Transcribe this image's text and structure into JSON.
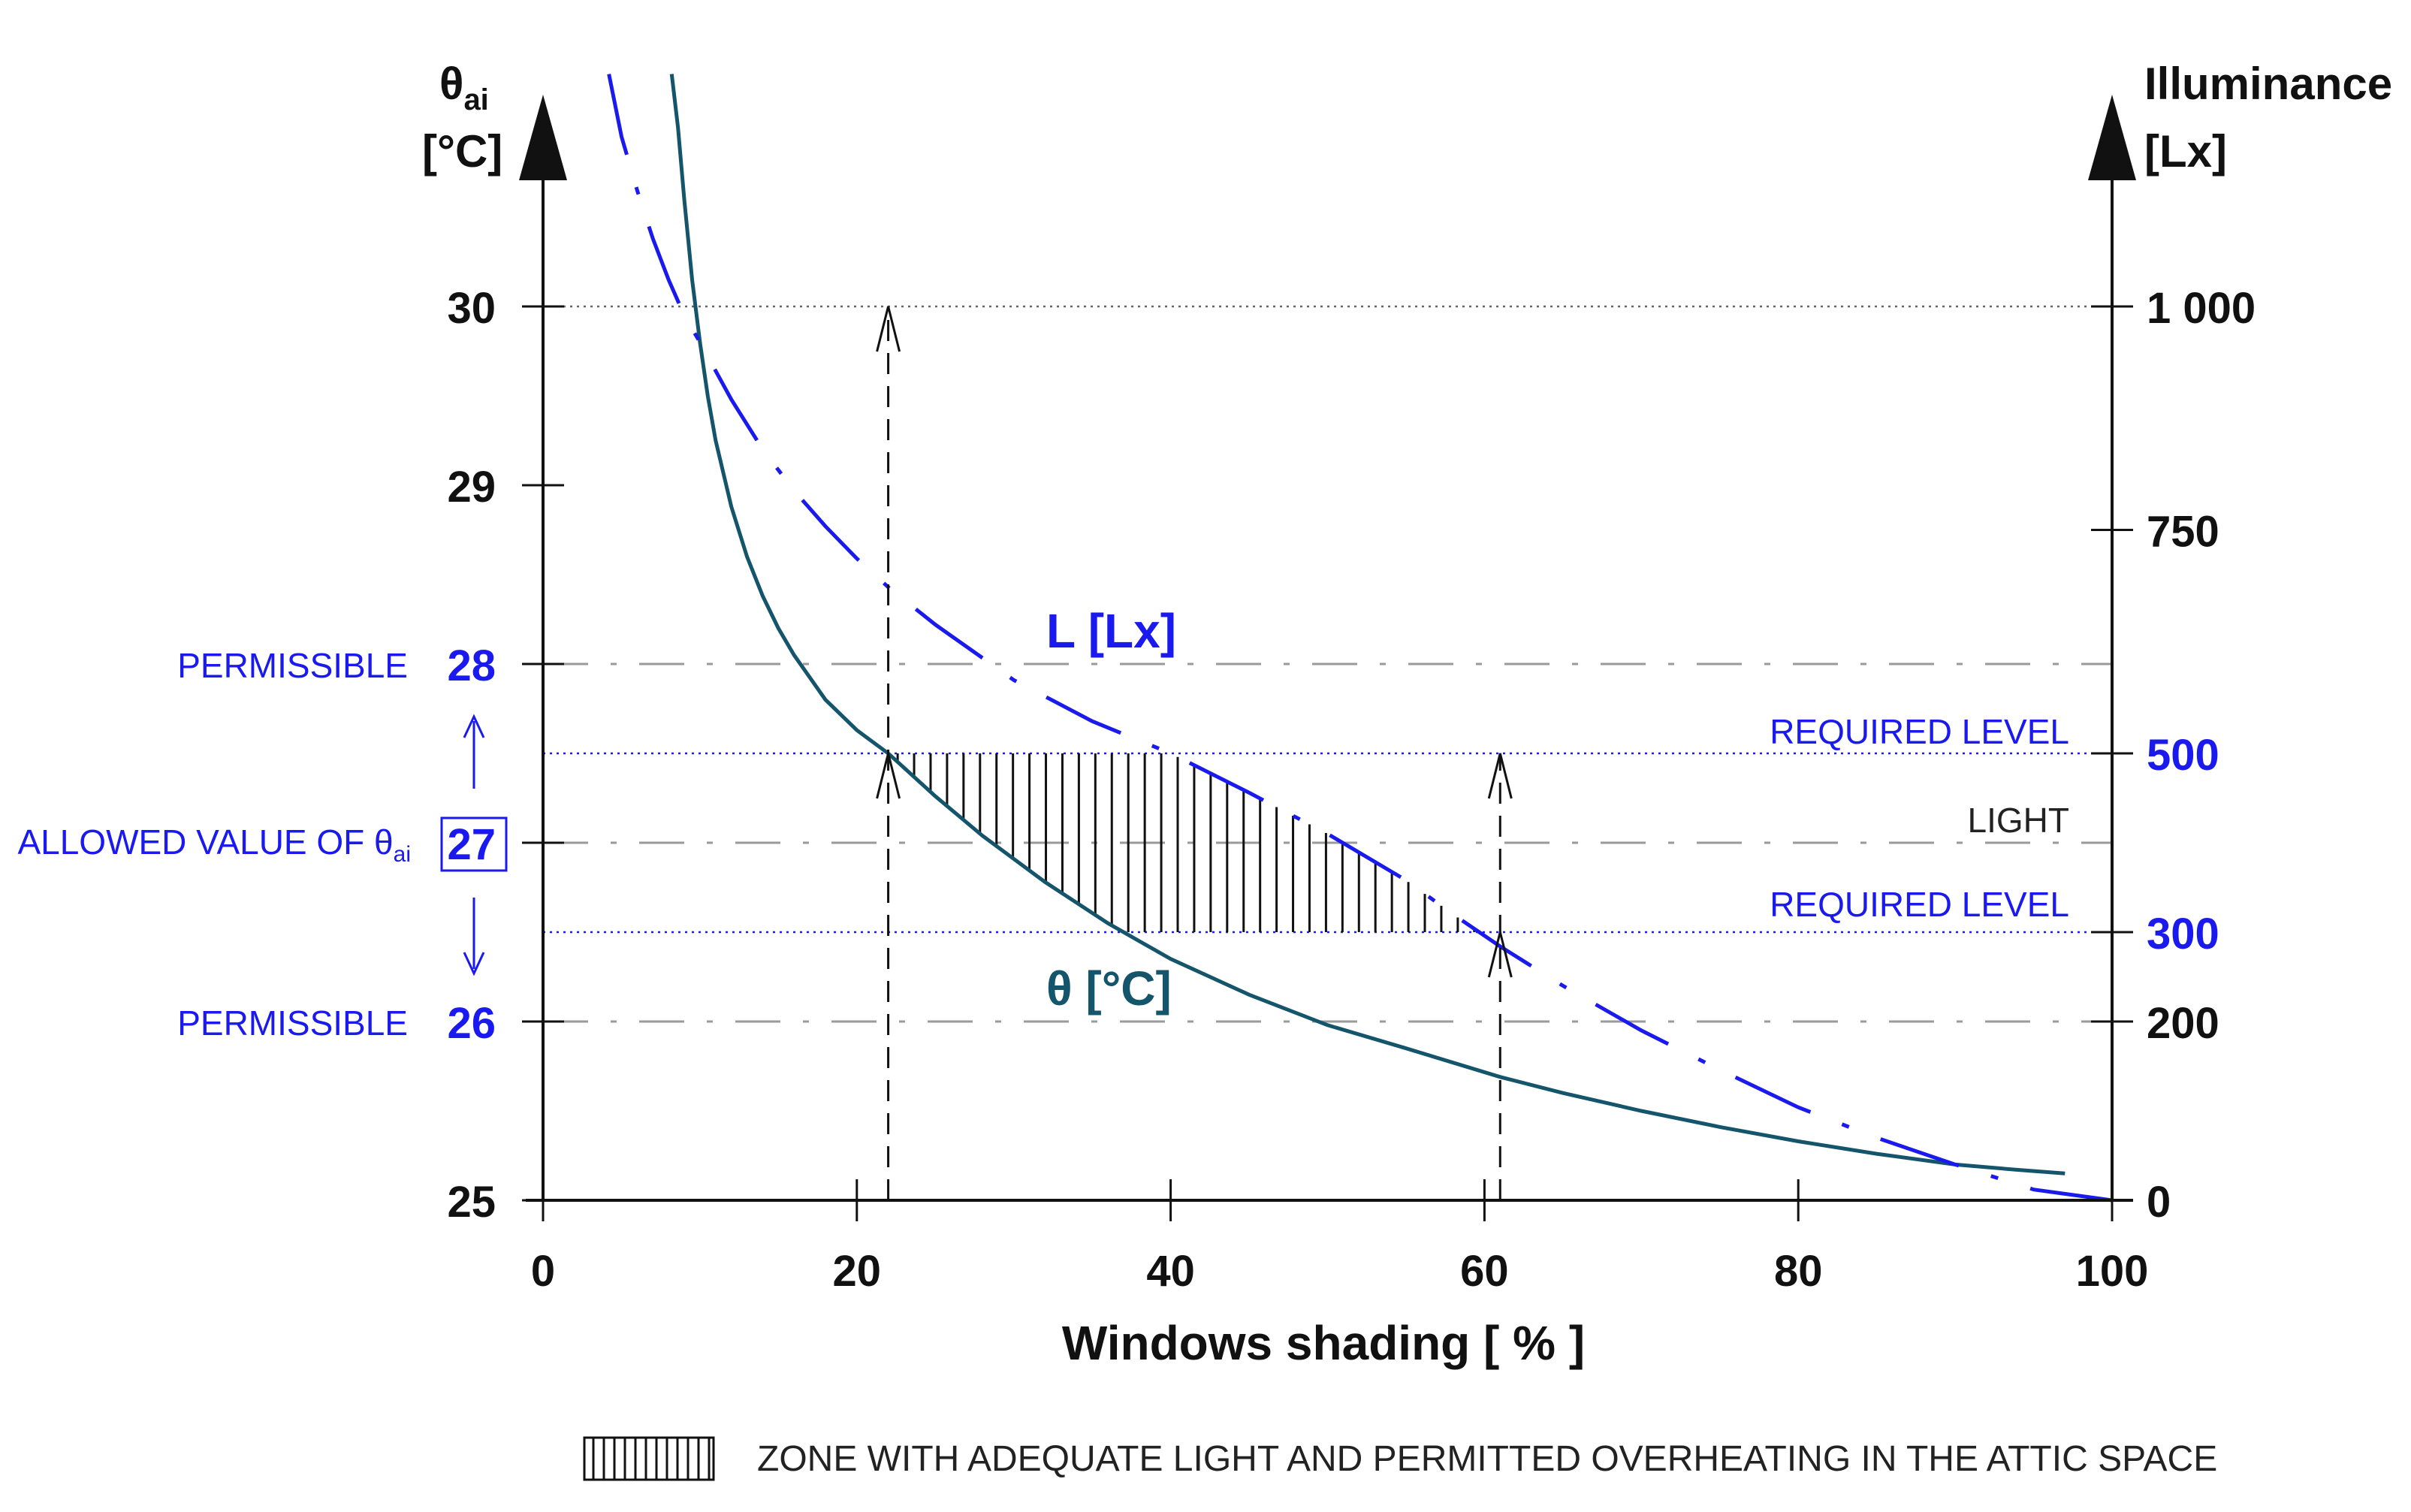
{
  "chart_data": {
    "type": "line",
    "xlabel": "Windows shading [ % ]",
    "x_ticks": [
      "0",
      "20",
      "40",
      "60",
      "80",
      "100"
    ],
    "xlim": [
      0,
      100
    ],
    "left_axis": {
      "symbol": "θ",
      "subscript": "ai",
      "unit": "[°C]",
      "ylim": [
        25,
        31.3
      ],
      "ticks": [
        {
          "v": 25,
          "label": "25",
          "highlight": false
        },
        {
          "v": 26,
          "label": "26",
          "highlight": true
        },
        {
          "v": 27,
          "label": "27",
          "highlight": true,
          "boxed": true
        },
        {
          "v": 28,
          "label": "28",
          "highlight": true
        },
        {
          "v": 29,
          "label": "29",
          "highlight": false
        },
        {
          "v": 30,
          "label": "30",
          "highlight": false
        }
      ]
    },
    "right_axis": {
      "title_line1": "Illuminance",
      "title_line2": "[Lx]",
      "ticks": [
        {
          "lx": 0,
          "label": "0",
          "theta_equiv": 25.0,
          "highlight": false
        },
        {
          "lx": 200,
          "label": "200",
          "theta_equiv": 26.0,
          "highlight": false
        },
        {
          "lx": 300,
          "label": "300",
          "theta_equiv": 26.5,
          "highlight": true
        },
        {
          "lx": 500,
          "label": "500",
          "theta_equiv": 27.5,
          "highlight": true
        },
        {
          "lx": 750,
          "label": "750",
          "theta_equiv": 28.75,
          "highlight": false
        },
        {
          "lx": 1000,
          "label": "1 000",
          "theta_equiv": 30.0,
          "highlight": false
        }
      ]
    },
    "series": [
      {
        "name": "θ [°C]",
        "color": "#14556b",
        "style": "solid",
        "x": [
          8.2,
          8.6,
          9.0,
          9.5,
          10.0,
          10.5,
          11.0,
          12.0,
          13.0,
          14.0,
          15.0,
          16.0,
          18.0,
          20.0,
          22.0,
          25.0,
          28.0,
          32.0,
          36.0,
          40.0,
          45.0,
          50.0,
          55.0,
          61.0,
          65.0,
          70.0,
          75.0,
          80.0,
          85.0,
          90.0,
          94.0,
          97.0
        ],
        "y": [
          31.3,
          31.0,
          30.6,
          30.15,
          29.8,
          29.5,
          29.25,
          28.88,
          28.6,
          28.38,
          28.2,
          28.05,
          27.8,
          27.63,
          27.5,
          27.26,
          27.04,
          26.78,
          26.55,
          26.35,
          26.15,
          25.98,
          25.85,
          25.69,
          25.6,
          25.5,
          25.41,
          25.33,
          25.26,
          25.2,
          25.17,
          25.15
        ]
      },
      {
        "name": "L [Lx]",
        "color": "#1a1aee",
        "style": "dashdot",
        "x": [
          4.2,
          5.0,
          6.0,
          7.0,
          8.0,
          9.0,
          10.0,
          12.0,
          14.0,
          16.0,
          18.0,
          20.0,
          22.0,
          25.0,
          30.0,
          35.0,
          40.0,
          45.0,
          50.0,
          55.0,
          58.0,
          61.0,
          65.0,
          70.0,
          75.0,
          80.0,
          85.0,
          90.0,
          95.0,
          100.0
        ],
        "y": [
          31.3,
          30.95,
          30.65,
          30.38,
          30.15,
          29.95,
          29.8,
          29.48,
          29.2,
          28.97,
          28.77,
          28.59,
          28.43,
          28.22,
          27.91,
          27.68,
          27.5,
          27.28,
          27.05,
          26.79,
          26.6,
          26.42,
          26.2,
          25.95,
          25.73,
          25.52,
          25.35,
          25.2,
          25.06,
          25.0
        ]
      }
    ],
    "hatch_zone": {
      "y_top": 27.5,
      "y_bottom": 26.5,
      "x_left": 22,
      "x_right": 61
    },
    "reference_lines": [
      {
        "v": 30.0,
        "style": "dotted"
      },
      {
        "v": 27.5,
        "style": "dotted"
      },
      {
        "v": 26.5,
        "style": "dotted"
      },
      {
        "v": 28.0,
        "style": "longdash"
      },
      {
        "v": 27.0,
        "style": "longdash"
      },
      {
        "v": 26.0,
        "style": "longdash"
      }
    ],
    "vertical_markers": [
      {
        "x": 22,
        "from": 25,
        "to": 30.0,
        "arrow_tips": [
          30.0,
          27.5
        ]
      },
      {
        "x": 61,
        "from": 25,
        "to": 27.5,
        "arrow_tips": [
          27.5,
          26.5
        ]
      }
    ],
    "annotations": {
      "permissible_upper": "PERMISSIBLE",
      "permissible_lower": "PERMISSIBLE",
      "allowed_value": "ALLOWED VALUE OF θ",
      "allowed_subscript": "ai",
      "required_level_upper": "REQUIRED LEVEL",
      "required_level_lower": "REQUIRED LEVEL",
      "light": "LIGHT",
      "label_L_curve": "L [Lx]",
      "label_theta_curve": "θ [°C]"
    },
    "legend": {
      "text": "ZONE WITH ADEQUATE LIGHT AND PERMITTED OVERHEATING IN THE ATTIC SPACE",
      "placement": "bottom"
    },
    "colors": {
      "blue": "#1a1aee",
      "teal": "#14556b",
      "black": "#111111",
      "gray": "#9a9a9a"
    }
  }
}
